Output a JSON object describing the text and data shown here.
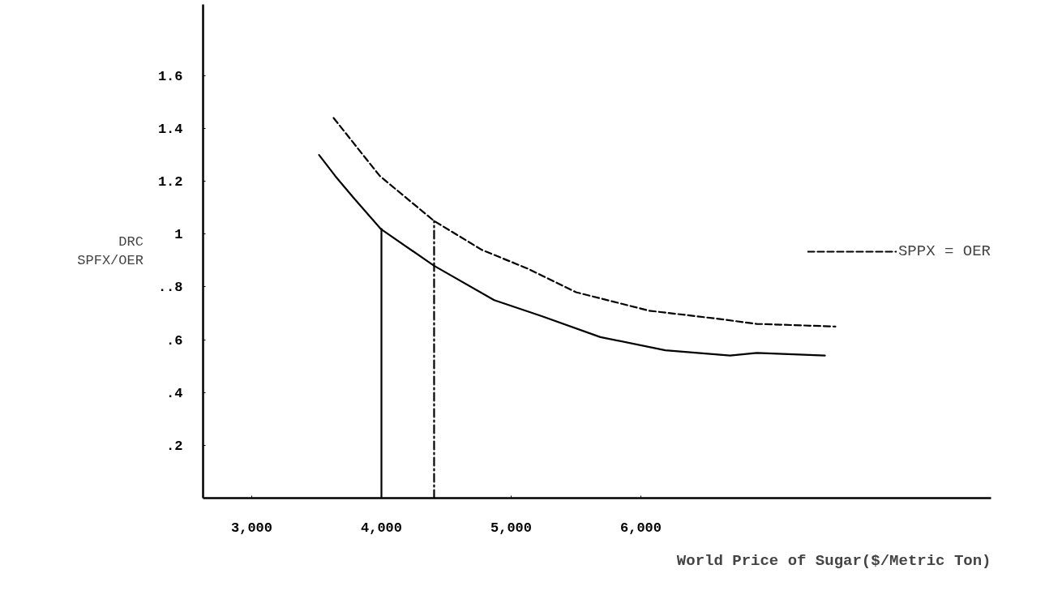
{
  "chart_data": {
    "type": "line",
    "ylabel": "DRC\nSPFX/OER",
    "xlabel": "World Price of Sugar($/Metric Ton)",
    "xlim": [
      2625,
      8700
    ],
    "ylim": [
      0,
      1.87
    ],
    "xticks": [
      {
        "value": 3000,
        "label": "3,000"
      },
      {
        "value": 4000,
        "label": "4,000"
      },
      {
        "value": 5000,
        "label": "5,000"
      },
      {
        "value": 6000,
        "label": "6,000"
      }
    ],
    "yticks": [
      {
        "value": 0.2,
        "label": ".2"
      },
      {
        "value": 0.4,
        "label": ".4"
      },
      {
        "value": 0.6,
        "label": ".6"
      },
      {
        "value": 0.8,
        "label": "..8"
      },
      1,
      1.2,
      1.4,
      1.6
    ],
    "grid": false,
    "legend": "right",
    "marker": "none",
    "series": [
      {
        "color": "#000000",
        "line_style": "solid",
        "x": [
          3519,
          3644,
          3781,
          3994,
          4406,
          4869,
          5231,
          5688,
          6188,
          6688,
          6894,
          7419
        ],
        "values": [
          1.3,
          1.22,
          1.14,
          1.02,
          0.88,
          0.75,
          0.69,
          0.61,
          0.56,
          0.54,
          0.55,
          0.54
        ]
      },
      {
        "name": "SPPX = OER",
        "color": "#000000",
        "line_style": "dashed",
        "x": [
          3631,
          3988,
          4406,
          4775,
          5125,
          5500,
          6063,
          6581,
          6894,
          7500
        ],
        "values": [
          1.44,
          1.22,
          1.05,
          0.94,
          0.87,
          0.78,
          0.71,
          0.68,
          0.66,
          0.65
        ]
      },
      {
        "color": "#000000",
        "line_style": "solid",
        "x": [
          4000,
          4000
        ],
        "values": [
          0,
          1.02
        ]
      },
      {
        "color": "#000000",
        "line_style": "dashdot",
        "x": [
          4406,
          4406
        ],
        "values": [
          0,
          1.05
        ]
      }
    ]
  }
}
